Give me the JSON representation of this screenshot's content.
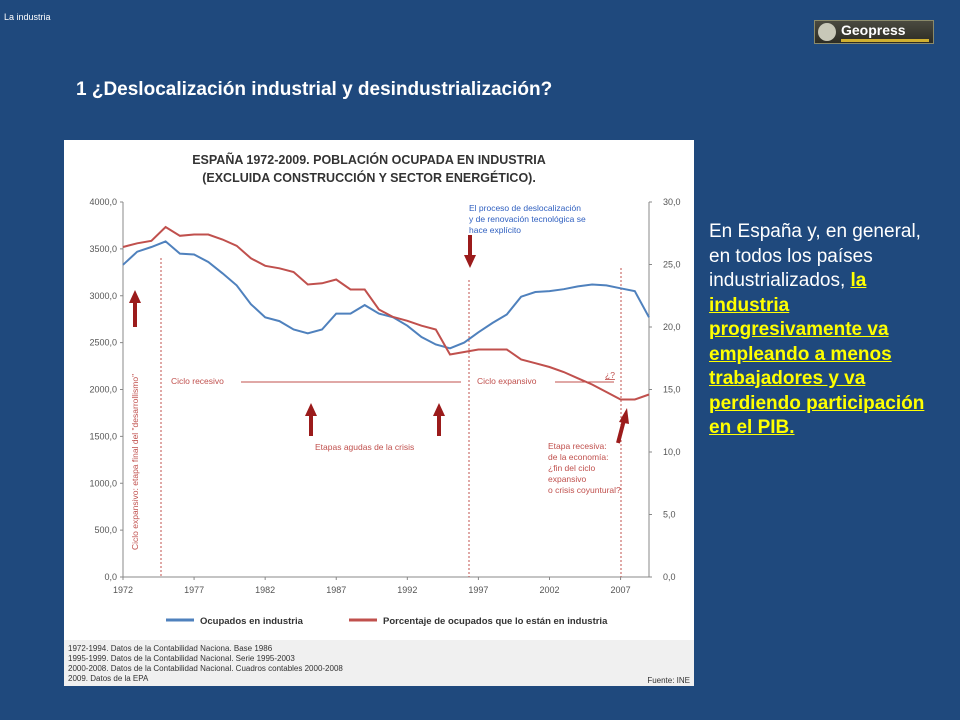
{
  "header": {
    "section_label": "La industria",
    "logo_text": "Geopress"
  },
  "slide": {
    "title": "1 ¿Deslocalización industrial y desindustrialización?",
    "side_text_plain": "En España y, en general, en todos los países industrializados, ",
    "side_text_highlight": "la industria progresivamente va empleando a menos trabajadores y va perdiendo participación en el PIB."
  },
  "colors": {
    "background": "#1f497d",
    "series_employed": "#4f81bd",
    "series_percent": "#c0504d",
    "annotation_red": "#c0504d",
    "annotation_blue": "#3060c0",
    "arrow": "#9b1b1b",
    "highlight_text": "#ffff00"
  },
  "chart_data": {
    "type": "line",
    "title": "ESPAÑA 1972-2009. POBLACIÓN OCUPADA EN INDUSTRIA",
    "subtitle": "(EXCLUIDA CONSTRUCCIÓN Y SECTOR ENERGÉTICO).",
    "x": [
      1972,
      1973,
      1974,
      1975,
      1976,
      1977,
      1978,
      1979,
      1980,
      1981,
      1982,
      1983,
      1984,
      1985,
      1986,
      1987,
      1988,
      1989,
      1990,
      1991,
      1992,
      1993,
      1994,
      1995,
      1996,
      1997,
      1998,
      1999,
      2000,
      2001,
      2002,
      2003,
      2004,
      2005,
      2006,
      2007,
      2008,
      2009
    ],
    "x_ticks": [
      1972,
      1977,
      1982,
      1987,
      1992,
      1997,
      2002,
      2007
    ],
    "y_left": {
      "ticks": [
        "0,0",
        "500,0",
        "1000,0",
        "1500,0",
        "2000,0",
        "2500,0",
        "3000,0",
        "3500,0",
        "4000,0"
      ],
      "range": [
        0,
        4000
      ]
    },
    "y_right": {
      "ticks": [
        "0,0",
        "5,0",
        "10,0",
        "15,0",
        "20,0",
        "25,0",
        "30,0"
      ],
      "range": [
        0,
        30
      ]
    },
    "series": [
      {
        "name": "Ocupados en industria",
        "axis": "left",
        "values": [
          3330,
          3470,
          3520,
          3580,
          3450,
          3440,
          3360,
          3240,
          3110,
          2910,
          2770,
          2730,
          2640,
          2600,
          2640,
          2810,
          2810,
          2900,
          2810,
          2770,
          2680,
          2560,
          2480,
          2440,
          2500,
          2610,
          2710,
          2800,
          2990,
          3040,
          3050,
          3070,
          3100,
          3120,
          3110,
          3080,
          3050,
          2770
        ]
      },
      {
        "name": "Porcentaje de ocupados que lo están en industria",
        "axis": "right",
        "values": [
          26.4,
          26.7,
          26.9,
          28.0,
          27.3,
          27.4,
          27.4,
          27.0,
          26.5,
          25.5,
          24.9,
          24.7,
          24.4,
          23.4,
          23.5,
          23.8,
          23.0,
          23.0,
          21.4,
          20.8,
          20.5,
          20.1,
          19.8,
          17.8,
          18.0,
          18.2,
          18.2,
          18.2,
          17.4,
          17.1,
          16.8,
          16.4,
          15.9,
          15.4,
          14.8,
          14.2,
          14.2,
          14.6
        ]
      }
    ],
    "annotations": {
      "deslocalizacion_l1": "El proceso de deslocalización",
      "deslocalizacion_l2": "y de renovación tecnológica se",
      "deslocalizacion_l3": "hace explícito",
      "desarrollismo": "Ciclo expansivo: etapa final del \"desarrollismo\"",
      "ciclo_recesivo": "Ciclo recesivo",
      "ciclo_expansivo": "Ciclo expansivo",
      "question": "¿?",
      "etapas_agudas": "Etapas agudas de la crisis",
      "recesiva_l1": "Etapa recesiva:",
      "recesiva_l2": "de la economía:",
      "recesiva_l3": "¿fin del ciclo",
      "recesiva_l4": "expansivo",
      "recesiva_l5": "o crisis coyuntural?"
    },
    "sources": [
      "1972-1994. Datos de la Contabilidad Naciona. Base 1986",
      "1995-1999. Datos de la Contabilidad Nacional. Serie 1995-2003",
      "2000-2008. Datos de la Contabilidad Nacional. Cuadros contables 2000-2008",
      "2009. Datos de la EPA"
    ],
    "source_label": "Fuente: INE",
    "grid": false,
    "legend_position": "bottom"
  }
}
